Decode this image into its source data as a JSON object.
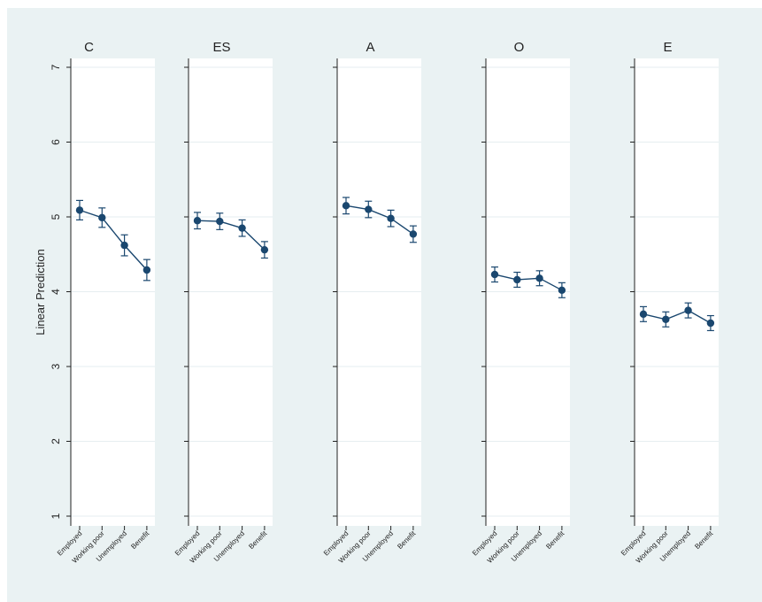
{
  "chart_data": {
    "type": "line",
    "ylabel": "Linear Prediction",
    "ylim": [
      1,
      7
    ],
    "yticks": [
      1,
      2,
      3,
      4,
      5,
      6,
      7
    ],
    "categories": [
      "Employed",
      "Working poor",
      "Unemployed",
      "Benefit"
    ],
    "grid": true,
    "colors": {
      "series": "#1a476f",
      "panel_bg": "#ffffff",
      "figure_bg": "#eaf2f3",
      "grid": "#e6eef0"
    },
    "panels": [
      {
        "title": "C",
        "values": [
          5.09,
          4.99,
          4.62,
          4.29
        ],
        "ci_low": [
          4.96,
          4.86,
          4.48,
          4.15
        ],
        "ci_high": [
          5.22,
          5.12,
          4.76,
          4.43
        ]
      },
      {
        "title": "ES",
        "values": [
          4.95,
          4.94,
          4.85,
          4.56
        ],
        "ci_low": [
          4.84,
          4.83,
          4.74,
          4.45
        ],
        "ci_high": [
          5.06,
          5.05,
          4.96,
          4.67
        ]
      },
      {
        "title": "A",
        "values": [
          5.15,
          5.1,
          4.98,
          4.77
        ],
        "ci_low": [
          5.04,
          4.99,
          4.87,
          4.66
        ],
        "ci_high": [
          5.26,
          5.21,
          5.09,
          4.88
        ]
      },
      {
        "title": "O",
        "values": [
          4.23,
          4.16,
          4.18,
          4.02
        ],
        "ci_low": [
          4.13,
          4.06,
          4.08,
          3.92
        ],
        "ci_high": [
          4.33,
          4.26,
          4.28,
          4.12
        ]
      },
      {
        "title": "E",
        "values": [
          3.7,
          3.63,
          3.75,
          3.58
        ],
        "ci_low": [
          3.6,
          3.53,
          3.65,
          3.48
        ],
        "ci_high": [
          3.8,
          3.73,
          3.85,
          3.68
        ]
      }
    ]
  }
}
